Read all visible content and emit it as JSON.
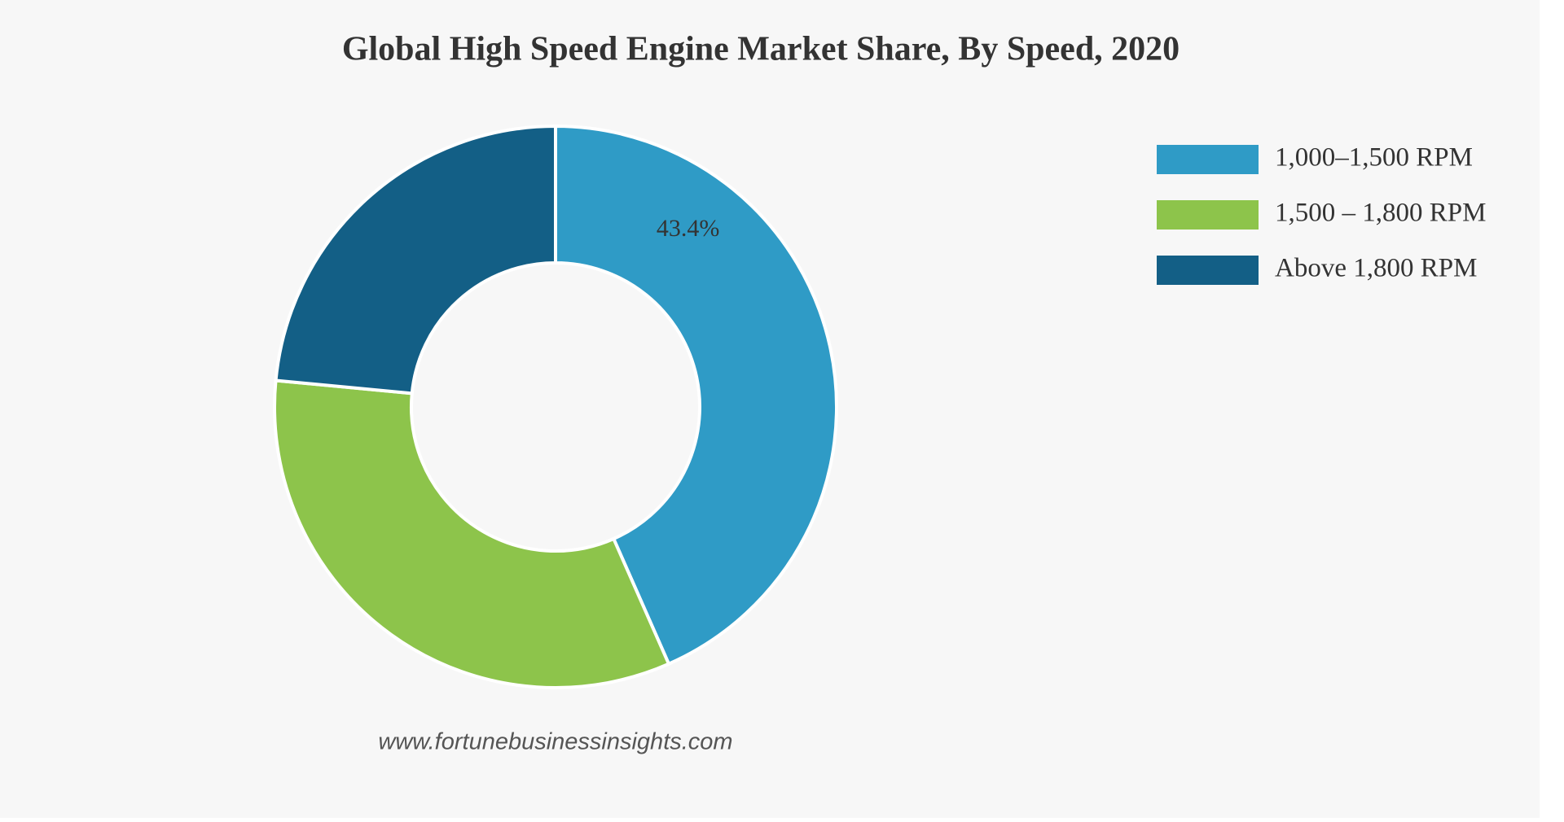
{
  "chart_data": {
    "type": "donut",
    "title": "Global High Speed Engine Market Share, By Speed, 2020",
    "categories": [
      "1,000–1,500 RPM",
      "1,500 – 1,800 RPM",
      "Above 1,800 RPM"
    ],
    "values": [
      43.4,
      33.1,
      23.5
    ],
    "value_labels": [
      "43.4%",
      null,
      null
    ],
    "colors": [
      "#2f9bc6",
      "#8dc44b",
      "#135f86"
    ],
    "legend": "top-right",
    "watermark": "www.fortunebusinessinsights.com"
  }
}
